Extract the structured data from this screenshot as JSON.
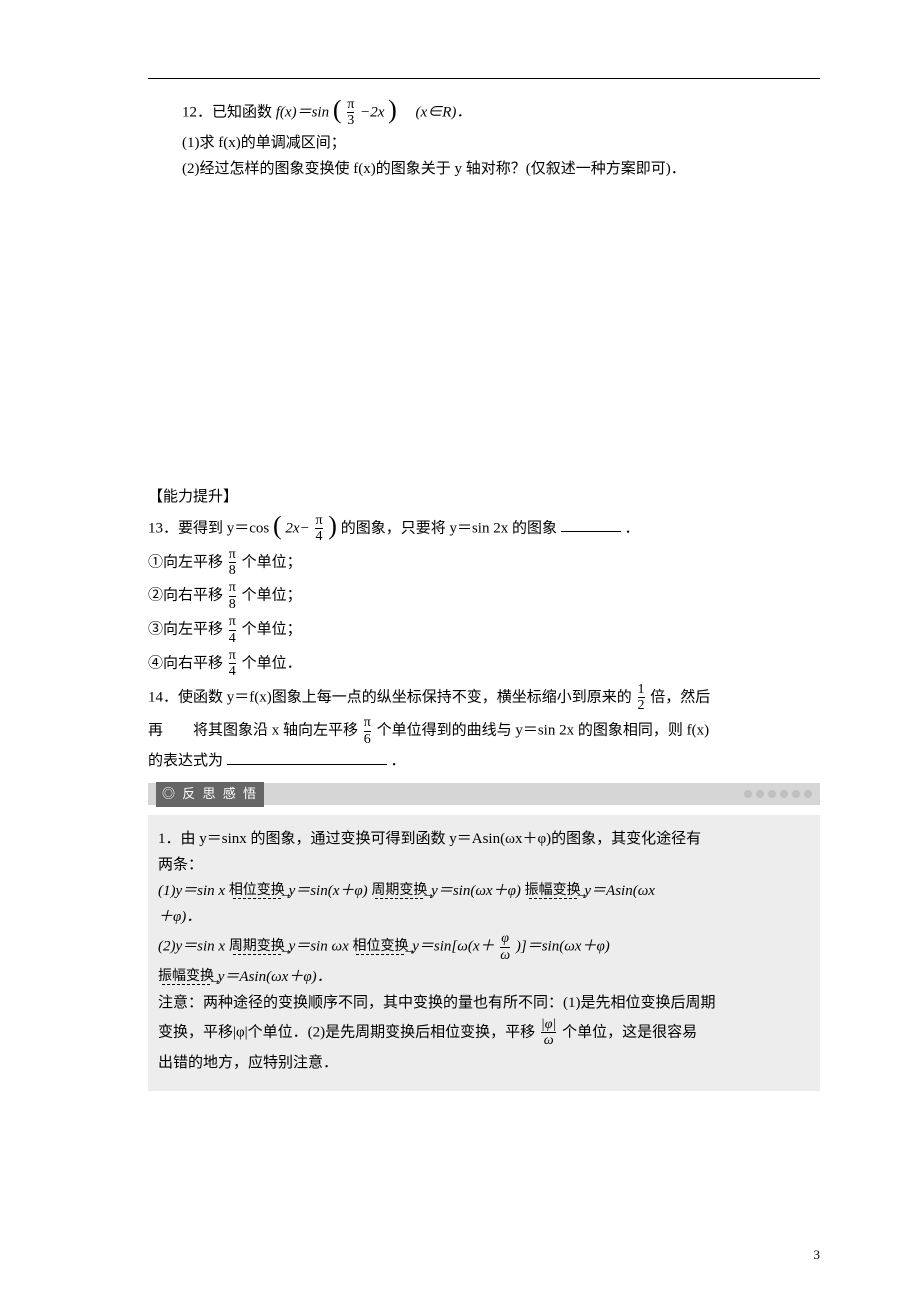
{
  "top_rule": true,
  "q12": {
    "stem_prefix": "12．已知函数 ",
    "fx": "f(x)＝sin",
    "paren_l": "(",
    "inner_num": "π",
    "inner_den": "3",
    "inner_tail": "−2x",
    "paren_r": ")",
    "tail": "　(x∈R)．",
    "sub1": "(1)求 f(x)的单调减区间；",
    "sub2": "(2)经过怎样的图象变换使 f(x)的图象关于 y 轴对称？(仅叙述一种方案即可)．"
  },
  "ability_heading": "【能力提升】",
  "q13": {
    "stem_prefix": "13．要得到 y＝cos",
    "paren_l": "(",
    "inner_lead": "2x−",
    "inner_num": "π",
    "inner_den": "4",
    "paren_r": ")",
    "mid": "的图象，只要将 y＝sin 2x 的图象",
    "tail": "．",
    "opt1_pre": "①向左平移",
    "opt1_num": "π",
    "opt1_den": "8",
    "opt1_tail": "个单位；",
    "opt2_pre": "②向右平移",
    "opt2_num": "π",
    "opt2_den": "8",
    "opt2_tail": "个单位；",
    "opt3_pre": "③向左平移",
    "opt3_num": "π",
    "opt3_den": "4",
    "opt3_tail": "个单位；",
    "opt4_pre": "④向右平移",
    "opt4_num": "π",
    "opt4_den": "4",
    "opt4_tail": "个单位．"
  },
  "q14": {
    "l1_pre": "14．使函数 y＝f(x)图象上每一点的纵坐标保持不变，横坐标缩小到原来的",
    "l1_num": "1",
    "l1_den": "2",
    "l1_tail": "倍，然后",
    "l2_pre": "再　　将其图象沿 x 轴向左平移",
    "l2_num": "π",
    "l2_den": "6",
    "l2_mid": "个单位得到的曲线与 y＝sin 2x 的图象相同，则 f(x)",
    "l3": "的表达式为",
    "l3_tail": "．"
  },
  "band_label": "◎ 反 思 感 悟",
  "review": {
    "p1a": "1．由 y＝sinx 的图象，通过变换可得到函数 y＝Asin(ωx＋φ)的图象，其变化途径有",
    "p1b": "两条：",
    "r1_pre": "(1)y＝sin x ",
    "r1_a1": "相位变换",
    "r1_m1": "y＝sin(x＋φ) ",
    "r1_a2": "周期变换",
    "r1_m2": "y＝sin(ωx＋φ) ",
    "r1_a3": "振幅变换",
    "r1_m3": "y＝Asin(ωx",
    "r1_tail": "＋φ)．",
    "r2_pre": "(2)y＝sin x ",
    "r2_a1": "周期变换",
    "r2_m1": "y＝sin ωx ",
    "r2_a2": "相位变换",
    "r2_m2_pre": "y＝sin[ω(x＋",
    "r2_m2_num": "φ",
    "r2_m2_den": "ω",
    "r2_m2_tail": ")]＝sin(ωx＋φ)",
    "r2_a3": "振幅变换",
    "r2_m3": "y＝Asin(ωx＋φ)．",
    "note1": "注意：两种途径的变换顺序不同，其中变换的量也有所不同：(1)是先相位变换后周期",
    "note2_pre": "变换，平移|φ|个单位．(2)是先周期变换后相位变换，平移",
    "note2_num": "|φ|",
    "note2_den": "ω",
    "note2_tail": "个单位，这是很容易",
    "note3": "出错的地方，应特别注意．"
  },
  "page_number": "3",
  "colors": {
    "text": "#000000",
    "band_bg": "#d6d6d6",
    "band_label_bg": "#666666",
    "band_label_fg": "#ffffff",
    "shaded_bg": "#ededed",
    "dot": "#bfbfbf"
  }
}
